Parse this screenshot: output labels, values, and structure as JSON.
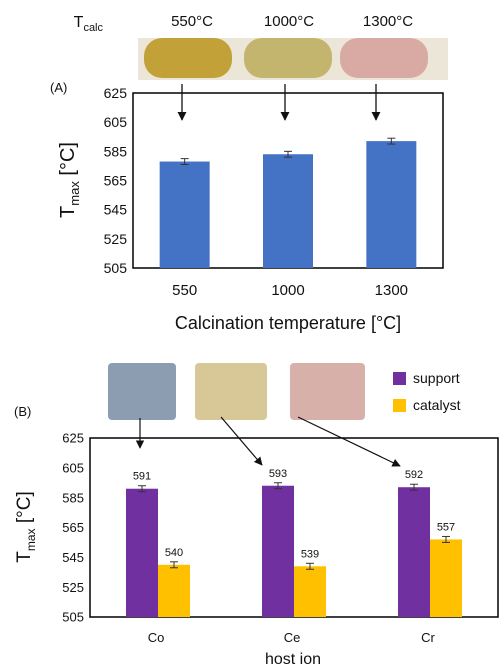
{
  "chart_data": [
    {
      "type": "bar",
      "panel_label": "(A)",
      "photo_header": {
        "label": "T",
        "label_sub": "calc",
        "temps": [
          "550°C",
          "1000°C",
          "1300°C"
        ]
      },
      "photo_colors": [
        "#c2a238",
        "#c4b56e",
        "#d9aaa3"
      ],
      "categories": [
        "550",
        "1000",
        "1300"
      ],
      "values": [
        578,
        583,
        592
      ],
      "errors": [
        2,
        2,
        2
      ],
      "xlabel": "Calcination temperature [°C]",
      "ylabel": "T",
      "ylabel_sub": "max",
      "ylabel_unit": " [°C]",
      "ylim": [
        505,
        625
      ],
      "yticks": [
        "505",
        "525",
        "545",
        "565",
        "585",
        "605",
        "625"
      ],
      "grid": false,
      "colors": [
        "#4472c4"
      ]
    },
    {
      "type": "bar",
      "panel_label": "(B)",
      "photo_colors": [
        "#8c9db2",
        "#d8c898",
        "#d8b0aa"
      ],
      "categories": [
        "Co",
        "Ce",
        "Cr"
      ],
      "series": [
        {
          "name": "support",
          "values": [
            591,
            593,
            592
          ],
          "errors": [
            2,
            2,
            2
          ],
          "labels": [
            "591",
            "593",
            "592"
          ],
          "color": "#7030a0"
        },
        {
          "name": "catalyst",
          "values": [
            540,
            539,
            557
          ],
          "errors": [
            2,
            2,
            2
          ],
          "labels": [
            "540",
            "539",
            "557"
          ],
          "color": "#ffc000"
        }
      ],
      "xlabel": "host ion",
      "ylabel": "T",
      "ylabel_sub": "max",
      "ylabel_unit": " [°C]",
      "ylim": [
        505,
        625
      ],
      "yticks": [
        "505",
        "525",
        "545",
        "565",
        "585",
        "605",
        "625"
      ],
      "legend_position": "top-right",
      "grid": false
    }
  ]
}
